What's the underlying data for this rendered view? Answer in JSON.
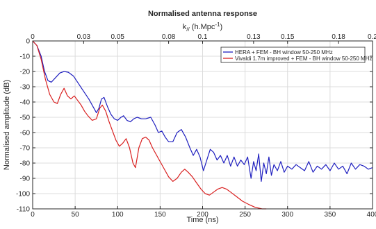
{
  "chart_data": {
    "type": "line",
    "title": "Normalised antenna response",
    "xlabel": "Time (ns)",
    "ylabel": "Normalised amplitude (dB)",
    "x2label": "k// (h.Mpc⁻¹)",
    "xlim": [
      0,
      400
    ],
    "ylim": [
      -110,
      0
    ],
    "x2lim": [
      0,
      0.2
    ],
    "grid": true,
    "legend_position": "top-right",
    "x_ticks": [
      "0",
      "50",
      "100",
      "150",
      "200",
      "250",
      "300",
      "350",
      "400"
    ],
    "y_ticks": [
      "0",
      "-10",
      "-20",
      "-30",
      "-40",
      "-50",
      "-60",
      "-70",
      "-80",
      "-90",
      "-100",
      "-110"
    ],
    "x2_ticks": [
      "0",
      "0.03",
      "0.05",
      "0.08",
      "0.1",
      "0.13",
      "0.15",
      "0.18",
      "0.2"
    ],
    "series": [
      {
        "name": "HERA + FEM - BH window 50-250 MHz",
        "color": "#1f1fbf",
        "points": [
          [
            0,
            0
          ],
          [
            5,
            -3
          ],
          [
            10,
            -10
          ],
          [
            14,
            -20
          ],
          [
            18,
            -26
          ],
          [
            22,
            -27
          ],
          [
            27,
            -24
          ],
          [
            32,
            -21
          ],
          [
            37,
            -20
          ],
          [
            42,
            -20.5
          ],
          [
            48,
            -23
          ],
          [
            54,
            -28
          ],
          [
            60,
            -33
          ],
          [
            66,
            -38
          ],
          [
            71,
            -43
          ],
          [
            75,
            -47
          ],
          [
            78,
            -44
          ],
          [
            81,
            -38
          ],
          [
            84,
            -37
          ],
          [
            88,
            -43
          ],
          [
            92,
            -48
          ],
          [
            96,
            -51
          ],
          [
            100,
            -52
          ],
          [
            104,
            -50
          ],
          [
            107,
            -49
          ],
          [
            111,
            -52
          ],
          [
            115,
            -53
          ],
          [
            119,
            -51
          ],
          [
            123,
            -50
          ],
          [
            128,
            -51
          ],
          [
            133,
            -51
          ],
          [
            139,
            -50
          ],
          [
            144,
            -55
          ],
          [
            148,
            -60
          ],
          [
            152,
            -59
          ],
          [
            156,
            -63
          ],
          [
            160,
            -66
          ],
          [
            165,
            -66
          ],
          [
            170,
            -60
          ],
          [
            175,
            -58
          ],
          [
            180,
            -63
          ],
          [
            185,
            -70
          ],
          [
            189,
            -75
          ],
          [
            193,
            -71
          ],
          [
            197,
            -76
          ],
          [
            201,
            -85
          ],
          [
            205,
            -78
          ],
          [
            209,
            -71
          ],
          [
            213,
            -73
          ],
          [
            217,
            -78
          ],
          [
            221,
            -75
          ],
          [
            225,
            -80
          ],
          [
            229,
            -75
          ],
          [
            233,
            -82
          ],
          [
            237,
            -76
          ],
          [
            241,
            -82
          ],
          [
            245,
            -78
          ],
          [
            249,
            -81
          ],
          [
            253,
            -76
          ],
          [
            257,
            -90
          ],
          [
            260,
            -79
          ],
          [
            263,
            -85
          ],
          [
            266,
            -74
          ],
          [
            269,
            -92
          ],
          [
            272,
            -80
          ],
          [
            275,
            -87
          ],
          [
            278,
            -76
          ],
          [
            281,
            -88
          ],
          [
            284,
            -81
          ],
          [
            288,
            -85
          ],
          [
            292,
            -79
          ],
          [
            296,
            -86
          ],
          [
            300,
            -82
          ],
          [
            305,
            -84
          ],
          [
            310,
            -81
          ],
          [
            315,
            -83
          ],
          [
            320,
            -85
          ],
          [
            325,
            -79
          ],
          [
            330,
            -86
          ],
          [
            335,
            -82
          ],
          [
            340,
            -84
          ],
          [
            345,
            -81
          ],
          [
            350,
            -85
          ],
          [
            355,
            -80
          ],
          [
            360,
            -84
          ],
          [
            365,
            -82
          ],
          [
            370,
            -87
          ],
          [
            375,
            -80
          ],
          [
            380,
            -84
          ],
          [
            385,
            -81
          ],
          [
            390,
            -82
          ],
          [
            395,
            -84
          ],
          [
            400,
            -83
          ]
        ]
      },
      {
        "name": "Vivaldi 1.7m improved + FEM - BH window 50-250 MHz",
        "color": "#d91f1f",
        "points": [
          [
            0,
            0
          ],
          [
            5,
            -3
          ],
          [
            10,
            -12
          ],
          [
            15,
            -25
          ],
          [
            20,
            -35
          ],
          [
            25,
            -40
          ],
          [
            29,
            -41
          ],
          [
            33,
            -35
          ],
          [
            37,
            -31
          ],
          [
            41,
            -36
          ],
          [
            45,
            -38
          ],
          [
            49,
            -36
          ],
          [
            53,
            -39
          ],
          [
            57,
            -42
          ],
          [
            61,
            -46
          ],
          [
            65,
            -49
          ],
          [
            70,
            -52
          ],
          [
            75,
            -51
          ],
          [
            79,
            -44
          ],
          [
            82,
            -42
          ],
          [
            86,
            -46
          ],
          [
            90,
            -53
          ],
          [
            94,
            -59
          ],
          [
            98,
            -65
          ],
          [
            102,
            -69
          ],
          [
            106,
            -67
          ],
          [
            110,
            -64
          ],
          [
            114,
            -70
          ],
          [
            118,
            -80
          ],
          [
            121,
            -83
          ],
          [
            125,
            -70
          ],
          [
            129,
            -64
          ],
          [
            133,
            -63
          ],
          [
            137,
            -65
          ],
          [
            141,
            -70
          ],
          [
            146,
            -75
          ],
          [
            151,
            -80
          ],
          [
            156,
            -85
          ],
          [
            160,
            -89
          ],
          [
            165,
            -92
          ],
          [
            170,
            -90
          ],
          [
            175,
            -86
          ],
          [
            179,
            -84
          ],
          [
            183,
            -86
          ],
          [
            188,
            -89
          ],
          [
            193,
            -93
          ],
          [
            198,
            -97
          ],
          [
            203,
            -100
          ],
          [
            208,
            -101
          ],
          [
            213,
            -99
          ],
          [
            218,
            -97
          ],
          [
            223,
            -96
          ],
          [
            228,
            -97
          ],
          [
            233,
            -99
          ],
          [
            240,
            -102
          ],
          [
            247,
            -105
          ],
          [
            254,
            -107
          ],
          [
            262,
            -109
          ],
          [
            270,
            -110
          ],
          [
            275,
            -110
          ]
        ]
      }
    ]
  }
}
